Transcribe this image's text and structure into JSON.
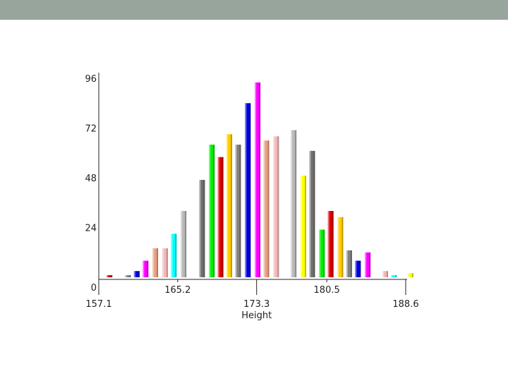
{
  "chart_data": {
    "type": "bar",
    "xlabel": "Height",
    "ylabel": "",
    "title": "",
    "ylim": [
      0,
      96
    ],
    "xlim": [
      157.1,
      188.6
    ],
    "y_ticks": [
      "0",
      "24",
      "48",
      "72",
      "96"
    ],
    "x_ticks_bottom": [
      "157.1",
      "173.3",
      "188.6"
    ],
    "x_ticks_top": [
      "165.2",
      "180.5"
    ],
    "grid": false,
    "bars": [
      {
        "x": 158.2,
        "value": 1,
        "color": "#cc0000"
      },
      {
        "x": 160.1,
        "value": 1,
        "color": "#808080"
      },
      {
        "x": 161.0,
        "value": 3,
        "color": "#0000dd"
      },
      {
        "x": 161.9,
        "value": 8,
        "color": "#ff00ff"
      },
      {
        "x": 162.9,
        "value": 14,
        "color": "#e8a080"
      },
      {
        "x": 163.9,
        "value": 14,
        "color": "#f4b8b8"
      },
      {
        "x": 164.8,
        "value": 21,
        "color": "#00ffff"
      },
      {
        "x": 165.8,
        "value": 32,
        "color": "#b8b8b8"
      },
      {
        "x": 167.7,
        "value": 47,
        "color": "#707070"
      },
      {
        "x": 168.7,
        "value": 64,
        "color": "#00ee00"
      },
      {
        "x": 169.6,
        "value": 58,
        "color": "#dd0000"
      },
      {
        "x": 170.5,
        "value": 69,
        "color": "#ffcc00"
      },
      {
        "x": 171.4,
        "value": 64,
        "color": "#808080"
      },
      {
        "x": 172.4,
        "value": 84,
        "color": "#0000dd"
      },
      {
        "x": 173.4,
        "value": 94,
        "color": "#ff00ff"
      },
      {
        "x": 174.3,
        "value": 66,
        "color": "#e8a080"
      },
      {
        "x": 175.3,
        "value": 68,
        "color": "#f4b8b8"
      },
      {
        "x": 177.1,
        "value": 71,
        "color": "#b8b8b8"
      },
      {
        "x": 178.1,
        "value": 49,
        "color": "#ffff00"
      },
      {
        "x": 179.0,
        "value": 61,
        "color": "#707070"
      },
      {
        "x": 180.0,
        "value": 23,
        "color": "#00ee00"
      },
      {
        "x": 180.9,
        "value": 32,
        "color": "#dd0000"
      },
      {
        "x": 181.9,
        "value": 29,
        "color": "#ffcc00"
      },
      {
        "x": 182.8,
        "value": 13,
        "color": "#808080"
      },
      {
        "x": 183.7,
        "value": 8,
        "color": "#0000dd"
      },
      {
        "x": 184.7,
        "value": 12,
        "color": "#ff00ff"
      },
      {
        "x": 186.5,
        "value": 3,
        "color": "#f4b8b8"
      },
      {
        "x": 187.4,
        "value": 1,
        "color": "#00ffff"
      },
      {
        "x": 189.1,
        "value": 2,
        "color": "#ffff00"
      }
    ]
  }
}
